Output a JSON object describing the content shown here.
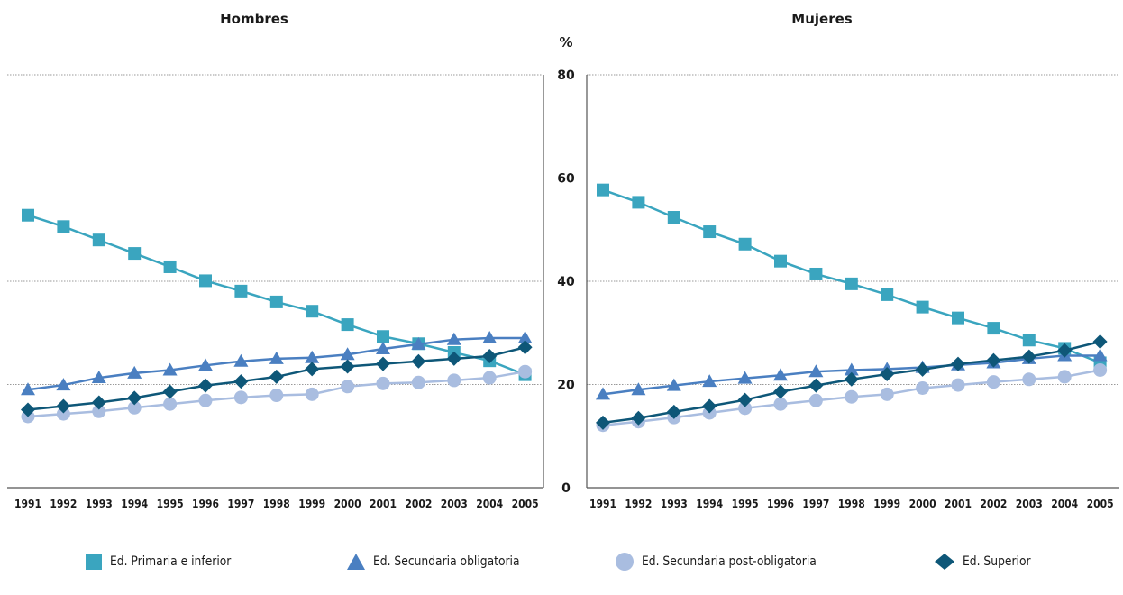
{
  "unit_label": "%",
  "colors": {
    "primaria": "#3aa5bf",
    "sec_obligatoria": "#4a7fc1",
    "sec_post": "#a9bde0",
    "superior": "#0e5778",
    "axis": "#555555",
    "grid": "#999999"
  },
  "legend": [
    {
      "label": "Ed. Primaria e inferior",
      "marker": "square",
      "color": "#3aa5bf"
    },
    {
      "label": "Ed. Secundaria obligatoria",
      "marker": "triangle",
      "color": "#4a7fc1"
    },
    {
      "label": "Ed. Secundaria post-obligatoria",
      "marker": "circle",
      "color": "#a9bde0"
    },
    {
      "label": "Ed. Superior",
      "marker": "diamond",
      "color": "#0e5778"
    }
  ],
  "chart_data": [
    {
      "type": "line",
      "title": "Hombres",
      "x": [
        "1991",
        "1992",
        "1993",
        "1994",
        "1995",
        "1996",
        "1997",
        "1998",
        "1999",
        "2000",
        "2001",
        "2002",
        "2003",
        "2004",
        "2005"
      ],
      "ylim": [
        0,
        80
      ],
      "yticks": [
        "0",
        "20",
        "40",
        "60",
        "80"
      ],
      "grid": true,
      "series": [
        {
          "name": "Ed. Primaria e inferior",
          "values": [
            52.8,
            50.6,
            48.0,
            45.4,
            42.8,
            40.1,
            38.1,
            36.0,
            34.2,
            31.6,
            29.3,
            27.9,
            26.2,
            24.6,
            21.9
          ]
        },
        {
          "name": "Ed. Secundaria obligatoria",
          "values": [
            19.0,
            19.9,
            21.3,
            22.2,
            22.8,
            23.7,
            24.5,
            25.0,
            25.2,
            25.8,
            26.9,
            27.8,
            28.7,
            29.0,
            29.0
          ]
        },
        {
          "name": "Ed. Secundaria post-obligatoria",
          "values": [
            13.8,
            14.3,
            14.8,
            15.5,
            16.2,
            16.9,
            17.5,
            17.9,
            18.1,
            19.6,
            20.2,
            20.4,
            20.8,
            21.3,
            22.5
          ]
        },
        {
          "name": "Ed. Superior",
          "values": [
            15.1,
            15.8,
            16.5,
            17.4,
            18.6,
            19.8,
            20.6,
            21.5,
            23.0,
            23.5,
            24.0,
            24.5,
            25.0,
            25.5,
            27.2
          ]
        }
      ]
    },
    {
      "type": "line",
      "title": "Mujeres",
      "x": [
        "1991",
        "1992",
        "1993",
        "1994",
        "1995",
        "1996",
        "1997",
        "1998",
        "1999",
        "2000",
        "2001",
        "2002",
        "2003",
        "2004",
        "2005"
      ],
      "ylim": [
        0,
        80
      ],
      "yticks": [
        "0",
        "20",
        "40",
        "60",
        "80"
      ],
      "grid": true,
      "series": [
        {
          "name": "Ed. Primaria e inferior",
          "values": [
            57.7,
            55.3,
            52.4,
            49.6,
            47.2,
            43.9,
            41.4,
            39.5,
            37.4,
            35.0,
            32.9,
            30.9,
            28.6,
            27.0,
            24.2
          ]
        },
        {
          "name": "Ed. Secundaria obligatoria",
          "values": [
            18.1,
            19.0,
            19.8,
            20.6,
            21.2,
            21.8,
            22.5,
            22.8,
            23.0,
            23.3,
            23.8,
            24.2,
            25.0,
            25.6,
            25.6
          ]
        },
        {
          "name": "Ed. Secundaria post-obligatoria",
          "values": [
            12.1,
            12.8,
            13.6,
            14.5,
            15.4,
            16.2,
            16.9,
            17.6,
            18.1,
            19.3,
            19.9,
            20.5,
            21.0,
            21.5,
            22.8
          ]
        },
        {
          "name": "Ed. Superior",
          "values": [
            12.6,
            13.5,
            14.7,
            15.8,
            17.0,
            18.6,
            19.8,
            21.0,
            22.0,
            22.9,
            24.0,
            24.7,
            25.4,
            26.6,
            28.3
          ]
        }
      ]
    }
  ]
}
